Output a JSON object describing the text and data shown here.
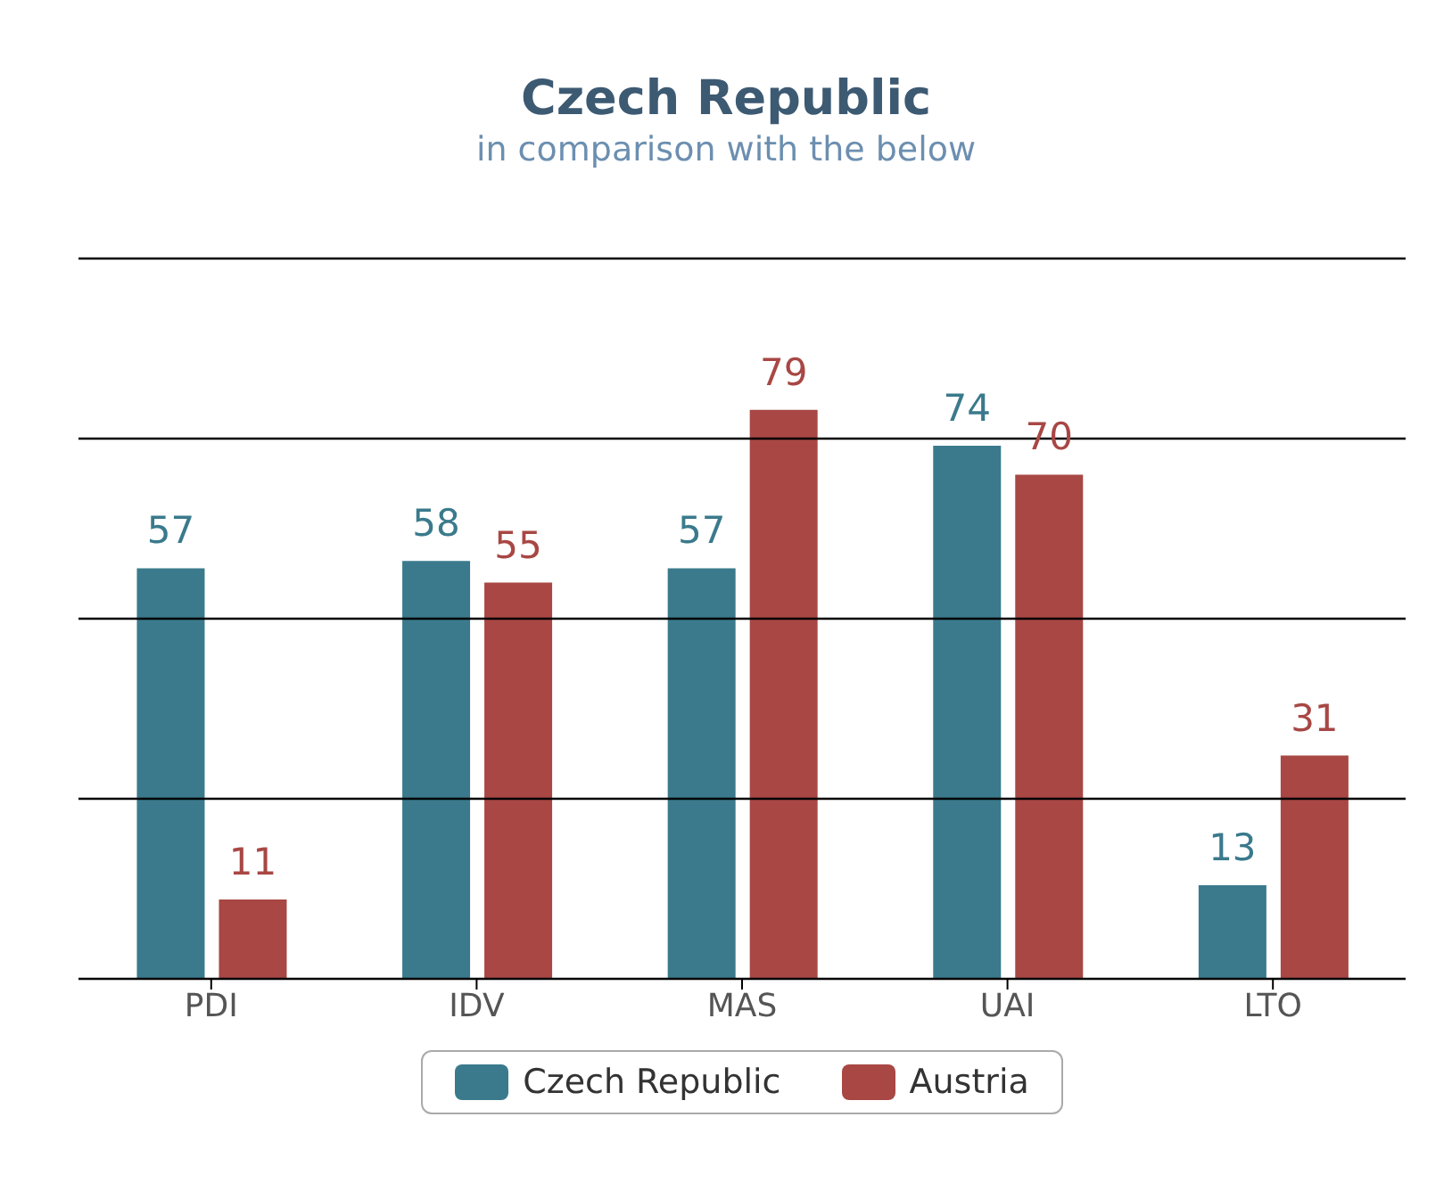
{
  "chart_data": {
    "type": "bar",
    "title": "Czech Republic",
    "subtitle": "in comparison with the below",
    "categories": [
      "PDI",
      "IDV",
      "MAS",
      "UAI",
      "LTO"
    ],
    "series": [
      {
        "name": "Czech Republic",
        "color": "#3a7a8c",
        "values": [
          57,
          58,
          57,
          74,
          13
        ]
      },
      {
        "name": "Austria",
        "color": "#a84744",
        "values": [
          11,
          55,
          79,
          70,
          31
        ]
      }
    ],
    "ylim": [
      0,
      100
    ],
    "yticks": [
      {
        "value": 0,
        "label": null
      },
      {
        "value": 25,
        "label": null
      },
      {
        "value": 50,
        "label": null
      },
      {
        "value": 75,
        "label": null
      },
      {
        "value": 100,
        "label": null
      }
    ],
    "tick_labels": "x",
    "grid": "y",
    "legend": "bottom",
    "data_labels": true
  }
}
